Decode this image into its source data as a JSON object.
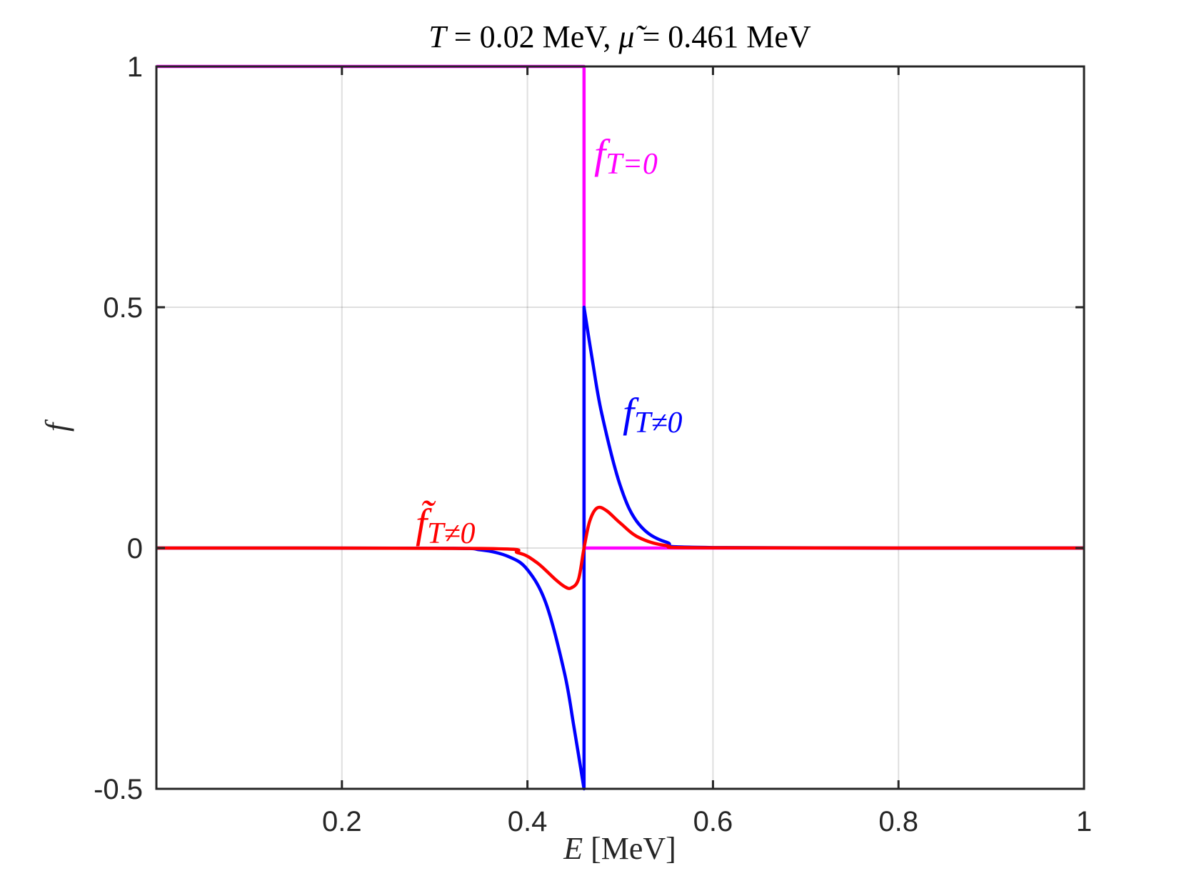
{
  "chart_data": {
    "type": "line",
    "title": {
      "T": "T",
      "T_value": " = 0.02 MeV, ",
      "mu": "μ̃",
      "mu_value": " = 0.461 MeV"
    },
    "xlabel": {
      "var": "E",
      "unit": " [MeV]"
    },
    "ylabel": "f",
    "xlim": [
      0,
      1
    ],
    "ylim": [
      -0.5,
      1
    ],
    "xticks": [
      0.2,
      0.4,
      0.6,
      0.8,
      1
    ],
    "xtick_labels": [
      "0.2",
      "0.4",
      "0.6",
      "0.8",
      "1"
    ],
    "yticks": [
      -0.5,
      0,
      0.5,
      1
    ],
    "ytick_labels": [
      "-0.5",
      "0",
      "0.5",
      "1"
    ],
    "grid": true,
    "params": {
      "T": 0.02,
      "mu": 0.461
    },
    "series": [
      {
        "key": "f_T0",
        "label_main": "f",
        "label_sub": "T=0",
        "color": "#ff00ff",
        "description": "step: 1 for E < mu, 0 for E > mu",
        "points": [
          [
            0,
            1
          ],
          [
            0.461,
            1
          ],
          [
            0.461,
            0.5
          ],
          [
            0.461,
            0
          ],
          [
            1,
            0
          ]
        ]
      },
      {
        "key": "f_Tne0",
        "label_main": "f",
        "label_sub": "T≠0",
        "color": "#0000ff",
        "description": "Fermi function minus step; jumps from -0.5 to 0.5 at E = mu",
        "points": [
          [
            0,
            0
          ],
          [
            0.3,
            -0.0003
          ],
          [
            0.35,
            -0.004
          ],
          [
            0.38,
            -0.018
          ],
          [
            0.4,
            -0.045
          ],
          [
            0.42,
            -0.115
          ],
          [
            0.44,
            -0.26
          ],
          [
            0.45,
            -0.37
          ],
          [
            0.461,
            -0.5
          ],
          [
            0.461,
            0.5
          ],
          [
            0.47,
            0.39
          ],
          [
            0.48,
            0.28
          ],
          [
            0.5,
            0.13
          ],
          [
            0.52,
            0.05
          ],
          [
            0.55,
            0.012
          ],
          [
            0.6,
            0.001
          ],
          [
            1,
            0
          ]
        ]
      },
      {
        "key": "ftilde_Tne0",
        "label_main": "f̃",
        "label_sub": "T≠0",
        "color": "#ff0000",
        "description": "smooth antisymmetric dip/peak around E = mu",
        "points": [
          [
            0,
            0
          ],
          [
            0.35,
            -0.001
          ],
          [
            0.39,
            -0.01
          ],
          [
            0.41,
            -0.03
          ],
          [
            0.43,
            -0.065
          ],
          [
            0.44,
            -0.08
          ],
          [
            0.447,
            -0.083
          ],
          [
            0.455,
            -0.065
          ],
          [
            0.461,
            0
          ],
          [
            0.467,
            0.055
          ],
          [
            0.475,
            0.083
          ],
          [
            0.485,
            0.078
          ],
          [
            0.5,
            0.052
          ],
          [
            0.52,
            0.022
          ],
          [
            0.55,
            0.005
          ],
          [
            0.6,
            0.0005
          ],
          [
            1,
            0
          ]
        ]
      }
    ]
  }
}
